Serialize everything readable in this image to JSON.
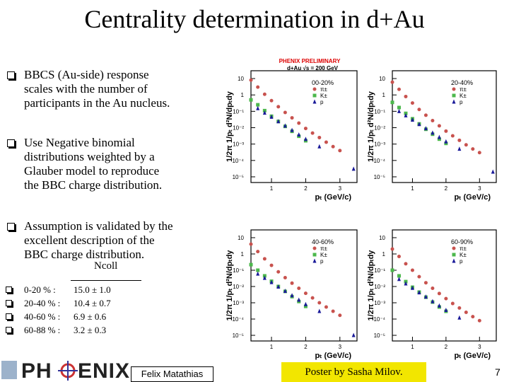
{
  "title": "Centrality determination in d+Au",
  "bullets": [
    [
      "BBCS (Au-side)  response",
      "scales with the number of",
      "participants in the Au nucleus."
    ],
    [
      "Use Negative binomial",
      "distributions weighted by a",
      "Glauber model to reproduce",
      "the BBC charge distribution."
    ],
    [
      "Assumption is validated by the",
      "excellent description of the",
      "BBC charge distribution."
    ]
  ],
  "ncoll": {
    "header": "Ncoll",
    "rows": [
      [
        "0-20 % :",
        "15.0 ± 1.0"
      ],
      [
        "20-40 % :",
        "10.4 ± 0.7"
      ],
      [
        "40-60 % :",
        "6.9 ± 0.6"
      ],
      [
        "60-88 % :",
        "3.2 ± 0.3"
      ]
    ]
  },
  "footer": {
    "logo": [
      "PH",
      "ENIX"
    ],
    "author": "Felix Matathias",
    "poster": "Poster by Sasha Milov.",
    "page": "7"
  },
  "plots": {
    "banner": [
      "PHENIX PRELIMINARY",
      "d+Au √s = 200 GeV"
    ],
    "panels": [
      {
        "type": "scatter",
        "label": "00-20%",
        "x_label": "pₜ (GeV/c)",
        "y_label": "1/2π 1/pₜ d²N/dpₜdy",
        "log_y": true,
        "xlim": [
          0.4,
          3.5
        ],
        "xticks": [
          1,
          2,
          3
        ],
        "ylim": [
          4.5e-06,
          30
        ],
        "yticks": [
          10,
          1,
          {
            "value": 0.1,
            "label": "10⁻¹"
          },
          {
            "value": 0.01,
            "label": "10⁻²"
          },
          {
            "value": 0.001,
            "label": "10⁻³"
          },
          {
            "value": 0.0001,
            "label": "10⁻⁴"
          },
          {
            "value": 1e-05,
            "label": "10⁻⁵"
          }
        ],
        "series": [
          {
            "name": "π±",
            "color": "#c8524e",
            "marker": "circle",
            "x": [
              0.4,
              0.6,
              0.8,
              1.0,
              1.2,
              1.4,
              1.6,
              1.8,
              2.0,
              2.2,
              2.4,
              2.6,
              2.8,
              3.0
            ],
            "values": [
              8,
              3,
              1.1,
              0.45,
              0.19,
              0.085,
              0.04,
              0.019,
              0.009,
              0.0047,
              0.0025,
              0.0013,
              0.0007,
              0.0004
            ]
          },
          {
            "name": "K±",
            "color": "#4cb84c",
            "marker": "square",
            "x": [
              0.4,
              0.6,
              0.8,
              1.0,
              1.2,
              1.4,
              1.6,
              1.8,
              2.0
            ],
            "values": [
              0.5,
              0.25,
              0.11,
              0.05,
              0.024,
              0.012,
              0.006,
              0.003,
              0.0016
            ]
          },
          {
            "name": "p",
            "color": "#1a1a99",
            "marker": "triangle",
            "x": [
              0.6,
              0.8,
              1.0,
              1.2,
              1.4,
              1.6,
              1.8,
              2.0,
              2.4,
              3.4
            ],
            "values": [
              0.15,
              0.08,
              0.045,
              0.024,
              0.013,
              0.007,
              0.0037,
              0.002,
              0.0007,
              3e-05
            ]
          }
        ]
      },
      {
        "type": "scatter",
        "label": "20-40%",
        "x_label": "pₜ (GeV/c)",
        "y_label": "1/2π 1/pₜ d²N/dpₜdy",
        "log_y": true,
        "xlim": [
          0.4,
          3.5
        ],
        "xticks": [
          1,
          2,
          3
        ],
        "ylim": [
          4.5e-06,
          30
        ],
        "yticks": [
          10,
          1,
          {
            "value": 0.1,
            "label": "10⁻¹"
          },
          {
            "value": 0.01,
            "label": "10⁻²"
          },
          {
            "value": 0.001,
            "label": "10⁻³"
          },
          {
            "value": 0.0001,
            "label": "10⁻⁴"
          },
          {
            "value": 1e-05,
            "label": "10⁻⁵"
          }
        ],
        "series": [
          {
            "name": "π±",
            "color": "#c8524e",
            "marker": "circle",
            "x": [
              0.4,
              0.6,
              0.8,
              1.0,
              1.2,
              1.4,
              1.6,
              1.8,
              2.0,
              2.2,
              2.4,
              2.6,
              2.8,
              3.0
            ],
            "values": [
              6,
              2.2,
              0.8,
              0.32,
              0.13,
              0.058,
              0.027,
              0.013,
              0.0062,
              0.0032,
              0.0017,
              0.0009,
              0.0005,
              0.0003
            ]
          },
          {
            "name": "K±",
            "color": "#4cb84c",
            "marker": "square",
            "x": [
              0.4,
              0.6,
              0.8,
              1.0,
              1.2,
              1.4,
              1.6,
              1.8,
              2.0
            ],
            "values": [
              0.35,
              0.17,
              0.075,
              0.035,
              0.017,
              0.008,
              0.004,
              0.002,
              0.0011
            ]
          },
          {
            "name": "p",
            "color": "#1a1a99",
            "marker": "triangle",
            "x": [
              0.6,
              0.8,
              1.0,
              1.2,
              1.4,
              1.6,
              1.8,
              2.0,
              2.4,
              3.4
            ],
            "values": [
              0.1,
              0.055,
              0.03,
              0.016,
              0.009,
              0.0048,
              0.0026,
              0.0014,
              0.0005,
              2e-05
            ]
          }
        ]
      },
      {
        "type": "scatter",
        "label": "40-60%",
        "x_label": "pₜ (GeV/c)",
        "y_label": "1/2π 1/pₜ d²N/dpₜdy",
        "log_y": true,
        "xlim": [
          0.4,
          3.5
        ],
        "xticks": [
          1,
          2,
          3
        ],
        "ylim": [
          4.5e-06,
          30
        ],
        "yticks": [
          10,
          1,
          {
            "value": 0.1,
            "label": "10⁻¹"
          },
          {
            "value": 0.01,
            "label": "10⁻²"
          },
          {
            "value": 0.001,
            "label": "10⁻³"
          },
          {
            "value": 0.0001,
            "label": "10⁻⁴"
          },
          {
            "value": 1e-05,
            "label": "10⁻⁵"
          }
        ],
        "series": [
          {
            "name": "π±",
            "color": "#c8524e",
            "marker": "circle",
            "x": [
              0.4,
              0.6,
              0.8,
              1.0,
              1.2,
              1.4,
              1.6,
              1.8,
              2.0,
              2.2,
              2.4,
              2.6,
              2.8,
              3.0
            ],
            "values": [
              4,
              1.4,
              0.5,
              0.2,
              0.08,
              0.035,
              0.016,
              0.0078,
              0.0038,
              0.002,
              0.001,
              0.00055,
              0.0003,
              0.00017
            ]
          },
          {
            "name": "K±",
            "color": "#4cb84c",
            "marker": "square",
            "x": [
              0.4,
              0.6,
              0.8,
              1.0,
              1.2,
              1.4,
              1.6,
              1.8,
              2.0
            ],
            "values": [
              0.22,
              0.1,
              0.045,
              0.021,
              0.01,
              0.005,
              0.0024,
              0.0012,
              0.0006
            ]
          },
          {
            "name": "p",
            "color": "#1a1a99",
            "marker": "triangle",
            "x": [
              0.6,
              0.8,
              1.0,
              1.2,
              1.4,
              1.6,
              1.8,
              2.0,
              2.4,
              3.4
            ],
            "values": [
              0.06,
              0.033,
              0.018,
              0.0095,
              0.0052,
              0.0028,
              0.0015,
              0.0008,
              0.0003,
              1e-05
            ]
          }
        ]
      },
      {
        "type": "scatter",
        "label": "60-90%",
        "x_label": "pₜ (GeV/c)",
        "y_label": "1/2π 1/pₜ d²N/dpₜdy",
        "log_y": true,
        "xlim": [
          0.4,
          3.5
        ],
        "xticks": [
          1,
          2,
          3
        ],
        "ylim": [
          4.5e-06,
          30
        ],
        "yticks": [
          10,
          1,
          {
            "value": 0.1,
            "label": "10⁻¹"
          },
          {
            "value": 0.01,
            "label": "10⁻²"
          },
          {
            "value": 0.001,
            "label": "10⁻³"
          },
          {
            "value": 0.0001,
            "label": "10⁻⁴"
          },
          {
            "value": 1e-05,
            "label": "10⁻⁵"
          }
        ],
        "series": [
          {
            "name": "π±",
            "color": "#c8524e",
            "marker": "circle",
            "x": [
              0.4,
              0.6,
              0.8,
              1.0,
              1.2,
              1.4,
              1.6,
              1.8,
              2.0,
              2.2,
              2.4,
              2.6,
              2.8,
              3.0
            ],
            "values": [
              2,
              0.7,
              0.25,
              0.1,
              0.04,
              0.017,
              0.0078,
              0.0037,
              0.0018,
              0.0009,
              0.00048,
              0.00026,
              0.00014,
              8e-05
            ]
          },
          {
            "name": "K±",
            "color": "#4cb84c",
            "marker": "square",
            "x": [
              0.4,
              0.6,
              0.8,
              1.0,
              1.2,
              1.4,
              1.6,
              1.8,
              2.0
            ],
            "values": [
              0.1,
              0.045,
              0.02,
              0.009,
              0.0045,
              0.0022,
              0.0011,
              0.00055,
              0.0003
            ]
          },
          {
            "name": "p",
            "color": "#1a1a99",
            "marker": "triangle",
            "x": [
              0.6,
              0.8,
              1.0,
              1.2,
              1.4,
              1.6,
              1.8,
              2.0,
              2.4
            ],
            "values": [
              0.028,
              0.015,
              0.008,
              0.0042,
              0.0023,
              0.0012,
              0.00065,
              0.00035,
              0.00012
            ]
          }
        ]
      }
    ]
  }
}
